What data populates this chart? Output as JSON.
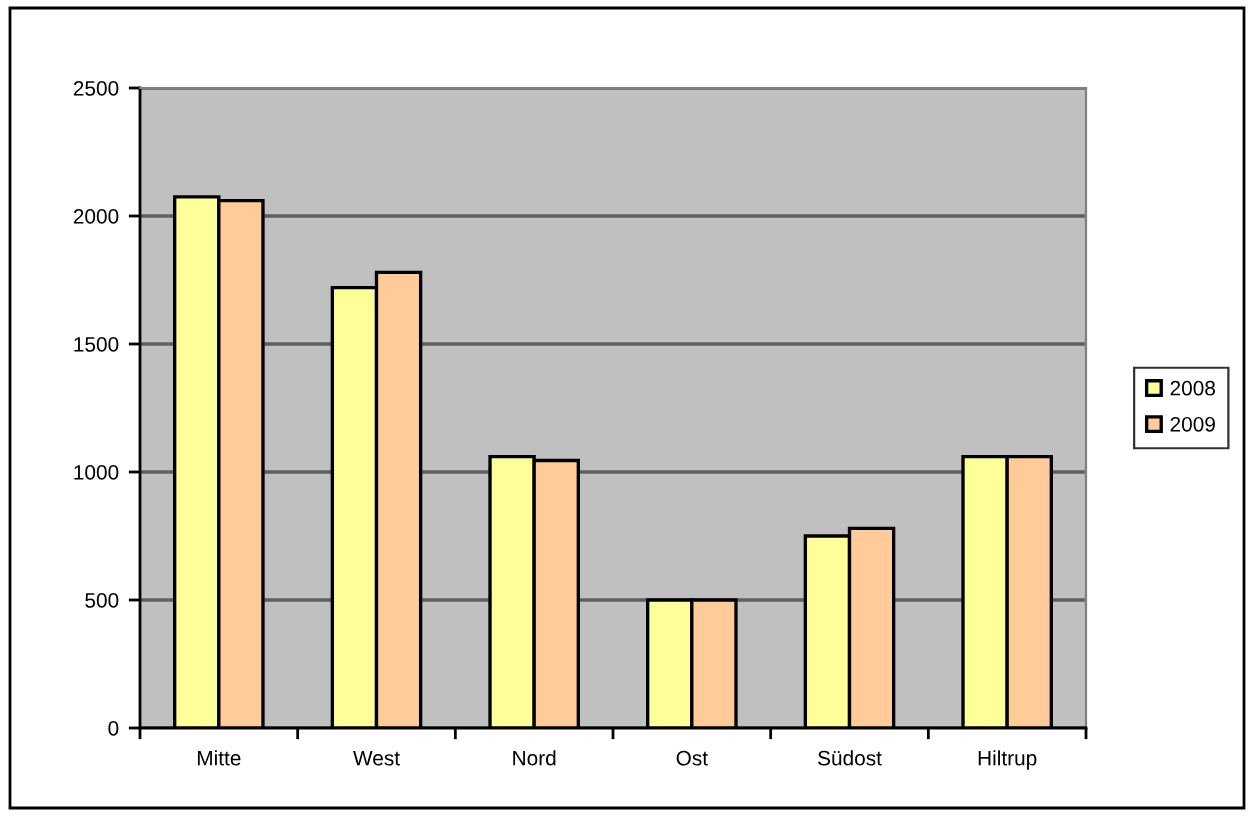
{
  "chart_data": {
    "type": "bar",
    "categories": [
      "Mitte",
      "West",
      "Nord",
      "Ost",
      "Südost",
      "Hiltrup"
    ],
    "series": [
      {
        "name": "2008",
        "color": "#ffff99",
        "values": [
          2075,
          1720,
          1060,
          500,
          750,
          1060
        ]
      },
      {
        "name": "2009",
        "color": "#ffcc99",
        "values": [
          2060,
          1780,
          1045,
          500,
          780,
          1060
        ]
      }
    ],
    "ylim": [
      0,
      2500
    ],
    "yticks": [
      0,
      500,
      1000,
      1500,
      2000,
      2500
    ],
    "grid": "y",
    "legend": "right"
  }
}
